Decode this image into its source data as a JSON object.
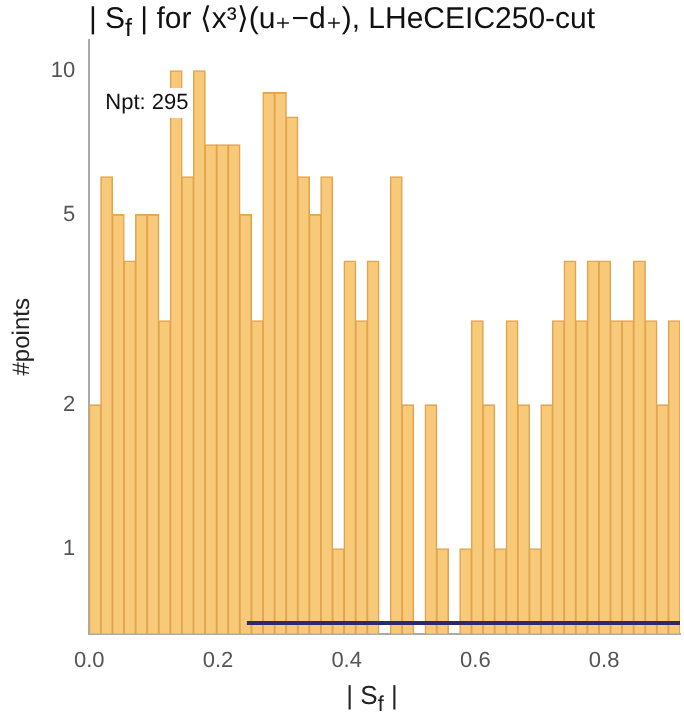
{
  "chart_data": {
    "type": "histogram",
    "title": "| S$_{f}$ | for ⟨x³⟩(u₊−d₊), LHeCEIC250-cut",
    "xlabel": "| S$_{f}$ |",
    "ylabel": "#points",
    "annotations": [
      "Npt: 295"
    ],
    "bins": [
      0,
      0.018,
      0.036,
      0.054,
      0.072,
      0.09,
      0.108,
      0.126,
      0.144,
      0.162,
      0.18,
      0.198,
      0.216,
      0.234,
      0.252,
      0.27,
      0.288,
      0.306,
      0.324,
      0.342,
      0.36,
      0.378,
      0.396,
      0.414,
      0.432,
      0.45,
      0.468,
      0.486,
      0.504,
      0.522,
      0.54,
      0.558,
      0.576,
      0.594,
      0.612,
      0.63,
      0.648,
      0.666,
      0.684,
      0.702,
      0.72,
      0.738,
      0.756,
      0.774,
      0.792,
      0.81,
      0.828,
      0.846,
      0.864,
      0.882,
      0.9,
      0.918
    ],
    "values": [
      2,
      6,
      5,
      4,
      5,
      5,
      3,
      10,
      6,
      10,
      7,
      7,
      7,
      5,
      3,
      9,
      9,
      8,
      6,
      5,
      6,
      1,
      4,
      3,
      4,
      null,
      6,
      2,
      null,
      2,
      1,
      null,
      1,
      3,
      2,
      1,
      3,
      2,
      1,
      2,
      3,
      4,
      3,
      4,
      4,
      3,
      3,
      4,
      3,
      2,
      3
    ],
    "color": "#f9c97a",
    "series": [
      {
        "type": "line",
        "color": "#2e2a6b",
        "x": [
          0.245,
          0.918
        ],
        "values": [
          0.7,
          0.7
        ]
      }
    ],
    "log": "y",
    "xlim": [
      0,
      0.918
    ],
    "ylim": [
      0.665,
      11.6
    ],
    "xticks": [
      {
        "value": 0,
        "label": "0.0"
      },
      0.2,
      0.4,
      0.6,
      0.8
    ],
    "yticks": [
      1,
      2,
      5,
      10
    ],
    "grid": false,
    "legend": false
  }
}
